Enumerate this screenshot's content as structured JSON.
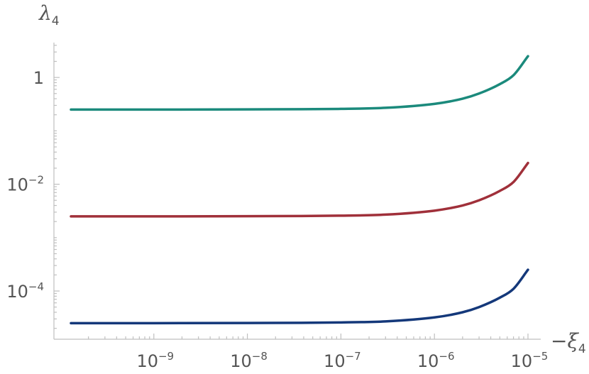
{
  "chart_data": {
    "type": "line",
    "title": "",
    "xlabel": {
      "prefix": "−",
      "symbol": "ξ",
      "sub": "4"
    },
    "ylabel": {
      "symbol": "λ",
      "sub": "4"
    },
    "x_scale": "log",
    "y_scale": "log",
    "xlim": [
      1.3e-10,
      1e-05
    ],
    "ylim": [
      1.25e-05,
      4.5
    ],
    "x_ticks": [
      {
        "value": 1e-09,
        "base": "10",
        "exp": "−9"
      },
      {
        "value": 1e-08,
        "base": "10",
        "exp": "−8"
      },
      {
        "value": 1e-07,
        "base": "10",
        "exp": "−7"
      },
      {
        "value": 1e-06,
        "base": "10",
        "exp": "−6"
      },
      {
        "value": 1e-05,
        "base": "10",
        "exp": "−5"
      }
    ],
    "y_ticks": [
      {
        "value": 1,
        "base": "1",
        "exp": ""
      },
      {
        "value": 0.01,
        "base": "10",
        "exp": "−2"
      },
      {
        "value": 0.0001,
        "base": "10",
        "exp": "−4"
      }
    ],
    "grid": false,
    "series": [
      {
        "color": "#1b8a7c",
        "x": [
          1.3e-10,
          1e-09,
          1e-08,
          1e-07,
          3e-07,
          1e-06,
          2e-06,
          3e-06,
          5e-06,
          7e-06,
          1e-05
        ],
        "y": [
          0.25,
          0.25,
          0.252,
          0.258,
          0.27,
          0.32,
          0.4,
          0.5,
          0.75,
          1.1,
          2.5
        ]
      },
      {
        "color": "#a0303a",
        "x": [
          1.3e-10,
          1e-09,
          1e-08,
          1e-07,
          3e-07,
          1e-06,
          2e-06,
          3e-06,
          5e-06,
          7e-06,
          1e-05
        ],
        "y": [
          0.0025,
          0.0025,
          0.00252,
          0.00258,
          0.0027,
          0.0032,
          0.004,
          0.005,
          0.0075,
          0.011,
          0.025
        ]
      },
      {
        "color": "#14387a",
        "x": [
          1.3e-10,
          1e-09,
          1e-08,
          1e-07,
          3e-07,
          1e-06,
          2e-06,
          3e-06,
          5e-06,
          7e-06,
          1e-05
        ],
        "y": [
          2.5e-05,
          2.5e-05,
          2.52e-05,
          2.58e-05,
          2.7e-05,
          3.2e-05,
          4e-05,
          5e-05,
          7.5e-05,
          0.00011,
          0.00025
        ]
      }
    ]
  }
}
